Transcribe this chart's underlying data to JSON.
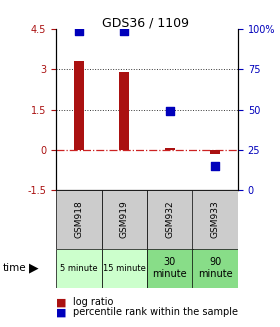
{
  "title": "GDS36 / 1109",
  "samples": [
    "GSM918",
    "GSM919",
    "GSM932",
    "GSM933"
  ],
  "time_labels": [
    "5 minute",
    "15 minute",
    "30\nminute",
    "90\nminute"
  ],
  "log_ratio": [
    3.3,
    2.9,
    0.05,
    -0.15
  ],
  "percentile_rank": [
    99,
    99,
    49,
    15
  ],
  "ylim_left": [
    -1.5,
    4.5
  ],
  "ylim_right": [
    0,
    100
  ],
  "yticks_left": [
    -1.5,
    0,
    1.5,
    3,
    4.5
  ],
  "yticks_right": [
    0,
    25,
    50,
    75,
    100
  ],
  "bar_color": "#AA1111",
  "dot_color": "#0000BB",
  "hline_color": "#CC2222",
  "dotline_color": "#333333",
  "bg_light_green": "#CCFFCC",
  "bg_green": "#88DD88",
  "bg_gray": "#CCCCCC",
  "bar_width": 0.22,
  "dot_size": 30
}
